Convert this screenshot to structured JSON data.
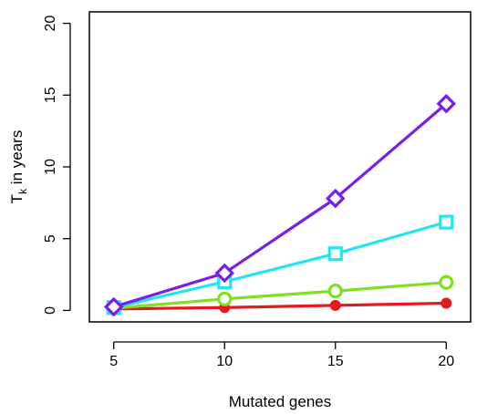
{
  "chart_data": {
    "type": "line",
    "title": "",
    "xlabel": "Mutated genes",
    "ylabel_main": "T",
    "ylabel_sub": "k",
    "ylabel_rest": " in years",
    "x": [
      5,
      10,
      15,
      20
    ],
    "xlim": [
      3.9,
      21.1
    ],
    "ylim": [
      -0.8,
      20.8
    ],
    "xticks": [
      5,
      10,
      15,
      20
    ],
    "yticks": [
      0,
      5,
      10,
      15,
      20
    ],
    "grid": false,
    "legend": "none",
    "series": [
      {
        "marker": "filled-circle",
        "color": "#e41a1c",
        "values": [
          0.1,
          0.2,
          0.35,
          0.5
        ]
      },
      {
        "marker": "open-circle",
        "color": "#7fe021",
        "values": [
          0.15,
          0.8,
          1.35,
          1.95
        ]
      },
      {
        "marker": "open-square",
        "color": "#22e5f0",
        "values": [
          0.2,
          2.0,
          3.95,
          6.15
        ]
      },
      {
        "marker": "open-diamond",
        "color": "#7a1de8",
        "values": [
          0.25,
          2.6,
          7.8,
          14.4
        ]
      }
    ]
  }
}
